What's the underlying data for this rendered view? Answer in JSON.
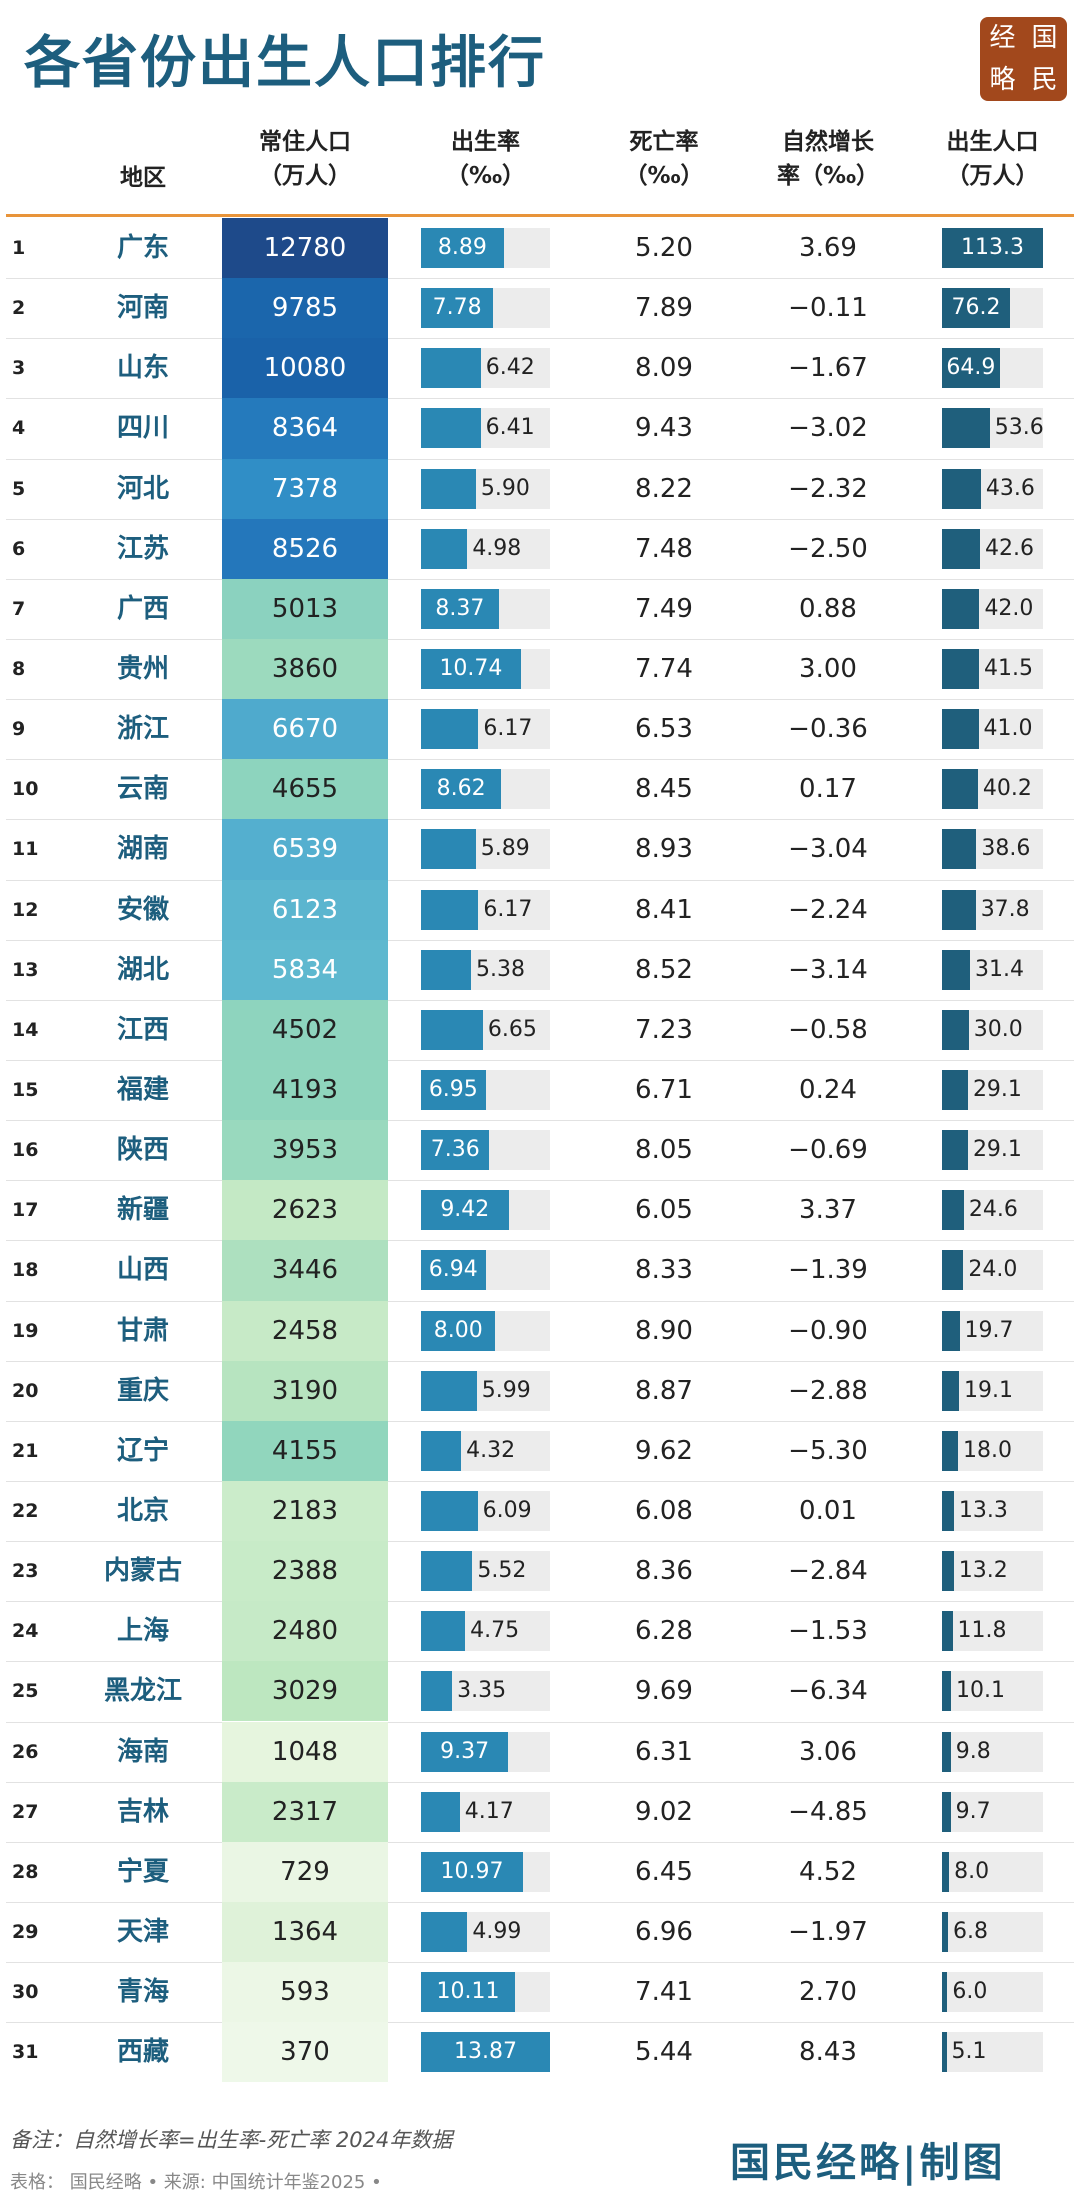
{
  "header": {
    "title": "各省份出生人口排行",
    "logo": [
      "经",
      "国",
      "略",
      "民"
    ]
  },
  "table": {
    "columns": [
      [
        "地区"
      ],
      [
        "常住人口",
        "（万人）"
      ],
      [
        "出生率",
        "（‰）"
      ],
      [
        "死亡率",
        "（‰）"
      ],
      [
        "自然增长",
        "率（‰）"
      ],
      [
        "出生人口",
        "（万人）"
      ]
    ],
    "rows": [
      [
        "1",
        "广东",
        "12780",
        "8.89",
        "5.20",
        "3.69",
        "113.3"
      ],
      [
        "2",
        "河南",
        "9785",
        "7.78",
        "7.89",
        "−0.11",
        "76.2"
      ],
      [
        "3",
        "山东",
        "10080",
        "6.42",
        "8.09",
        "−1.67",
        "64.9"
      ],
      [
        "4",
        "四川",
        "8364",
        "6.41",
        "9.43",
        "−3.02",
        "53.6"
      ],
      [
        "5",
        "河北",
        "7378",
        "5.90",
        "8.22",
        "−2.32",
        "43.6"
      ],
      [
        "6",
        "江苏",
        "8526",
        "4.98",
        "7.48",
        "−2.50",
        "42.6"
      ],
      [
        "7",
        "广西",
        "5013",
        "8.37",
        "7.49",
        "0.88",
        "42.0"
      ],
      [
        "8",
        "贵州",
        "3860",
        "10.74",
        "7.74",
        "3.00",
        "41.5"
      ],
      [
        "9",
        "浙江",
        "6670",
        "6.17",
        "6.53",
        "−0.36",
        "41.0"
      ],
      [
        "10",
        "云南",
        "4655",
        "8.62",
        "8.45",
        "0.17",
        "40.2"
      ],
      [
        "11",
        "湖南",
        "6539",
        "5.89",
        "8.93",
        "−3.04",
        "38.6"
      ],
      [
        "12",
        "安徽",
        "6123",
        "6.17",
        "8.41",
        "−2.24",
        "37.8"
      ],
      [
        "13",
        "湖北",
        "5834",
        "5.38",
        "8.52",
        "−3.14",
        "31.4"
      ],
      [
        "14",
        "江西",
        "4502",
        "6.65",
        "7.23",
        "−0.58",
        "30.0"
      ],
      [
        "15",
        "福建",
        "4193",
        "6.95",
        "6.71",
        "0.24",
        "29.1"
      ],
      [
        "16",
        "陕西",
        "3953",
        "7.36",
        "8.05",
        "−0.69",
        "29.1"
      ],
      [
        "17",
        "新疆",
        "2623",
        "9.42",
        "6.05",
        "3.37",
        "24.6"
      ],
      [
        "18",
        "山西",
        "3446",
        "6.94",
        "8.33",
        "−1.39",
        "24.0"
      ],
      [
        "19",
        "甘肃",
        "2458",
        "8.00",
        "8.90",
        "−0.90",
        "19.7"
      ],
      [
        "20",
        "重庆",
        "3190",
        "5.99",
        "8.87",
        "−2.88",
        "19.1"
      ],
      [
        "21",
        "辽宁",
        "4155",
        "4.32",
        "9.62",
        "−5.30",
        "18.0"
      ],
      [
        "22",
        "北京",
        "2183",
        "6.09",
        "6.08",
        "0.01",
        "13.3"
      ],
      [
        "23",
        "内蒙古",
        "2388",
        "5.52",
        "8.36",
        "−2.84",
        "13.2"
      ],
      [
        "24",
        "上海",
        "2480",
        "4.75",
        "6.28",
        "−1.53",
        "11.8"
      ],
      [
        "25",
        "黑龙江",
        "3029",
        "3.35",
        "9.69",
        "−6.34",
        "10.1"
      ],
      [
        "26",
        "海南",
        "1048",
        "9.37",
        "6.31",
        "3.06",
        "9.8"
      ],
      [
        "27",
        "吉林",
        "2317",
        "4.17",
        "9.02",
        "−4.85",
        "9.7"
      ],
      [
        "28",
        "宁夏",
        "729",
        "10.97",
        "6.45",
        "4.52",
        "8.0"
      ],
      [
        "29",
        "天津",
        "1364",
        "4.99",
        "6.96",
        "−1.97",
        "6.8"
      ],
      [
        "30",
        "青海",
        "593",
        "10.11",
        "7.41",
        "2.70",
        "6.0"
      ],
      [
        "31",
        "西藏",
        "370",
        "13.87",
        "5.44",
        "8.43",
        "5.1"
      ]
    ]
  },
  "footer": {
    "note": "备注：自然增长率=出生率-死亡率 2024年数据",
    "source": "表格： 国民经略 • 来源: 中国统计年鉴2025 •",
    "brand": "国民经略|制图"
  }
}
